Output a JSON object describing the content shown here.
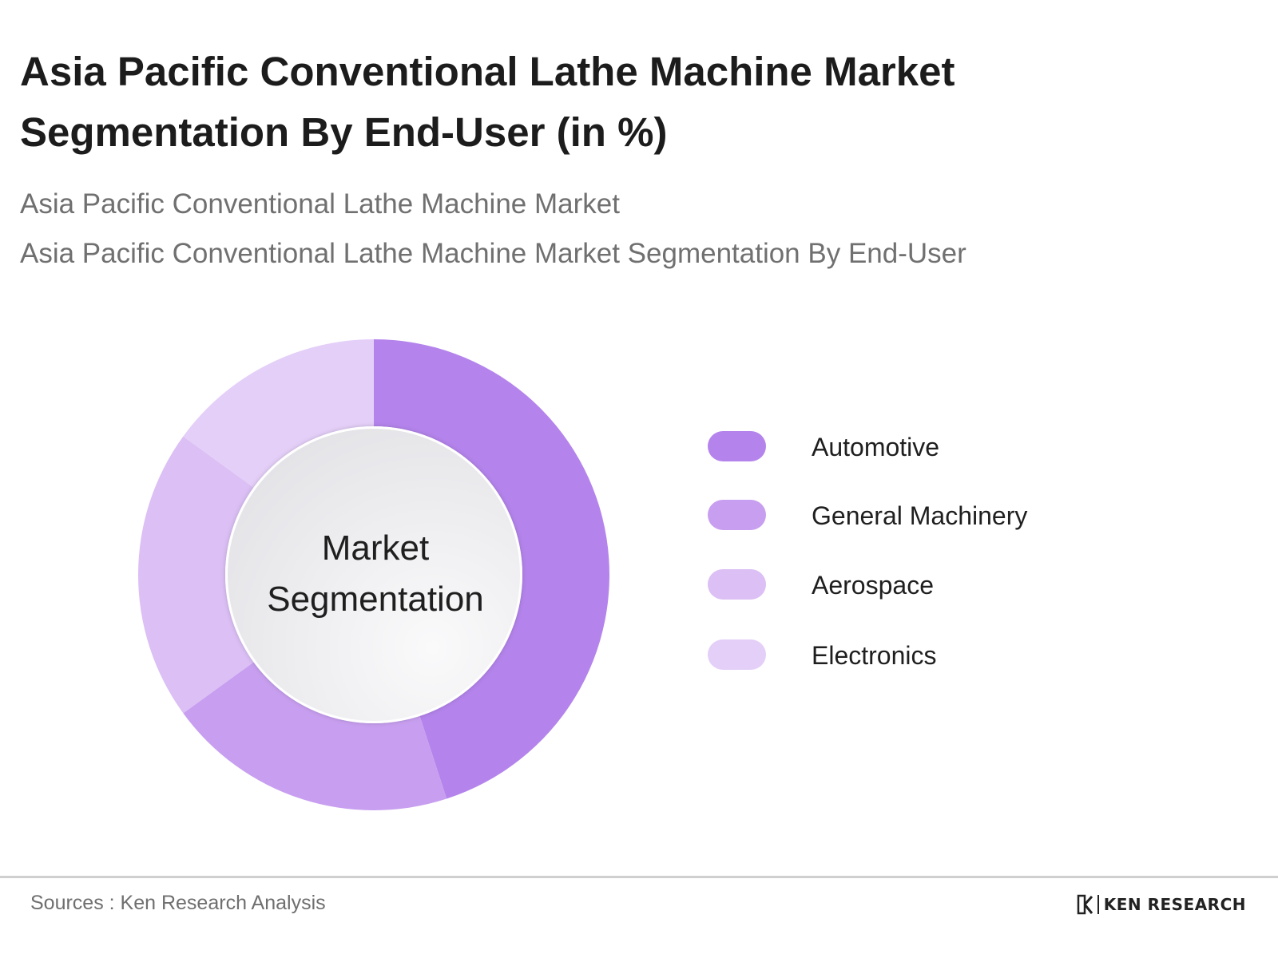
{
  "title": "Asia Pacific Conventional Lathe Machine Market Segmentation By End-User (in %)",
  "subtitle_1": "Asia Pacific Conventional Lathe Machine Market",
  "subtitle_2": "Asia Pacific Conventional Lathe Machine Market Segmentation By End-User",
  "center_label": {
    "line1": "Market",
    "line2": "Segmentation"
  },
  "chart_data": {
    "type": "pie",
    "categories": [
      "Automotive",
      "General Machinery",
      "Aerospace",
      "Electronics"
    ],
    "values": [
      45,
      20,
      20,
      15
    ],
    "colors": [
      "#b484ec",
      "#c89ff0",
      "#dbbff5",
      "#e4cff8"
    ]
  },
  "legend": {
    "items": [
      {
        "label": "Automotive",
        "color": "#b484ec"
      },
      {
        "label": "General Machinery",
        "color": "#c89ff0"
      },
      {
        "label": "Aerospace",
        "color": "#dbbff5"
      },
      {
        "label": "Electronics",
        "color": "#e4cff8"
      }
    ]
  },
  "footer": {
    "source": "Sources : Ken Research Analysis",
    "brand": "KEN RESEARCH",
    "brand_logo_icon": "ken-research-logo-icon"
  }
}
